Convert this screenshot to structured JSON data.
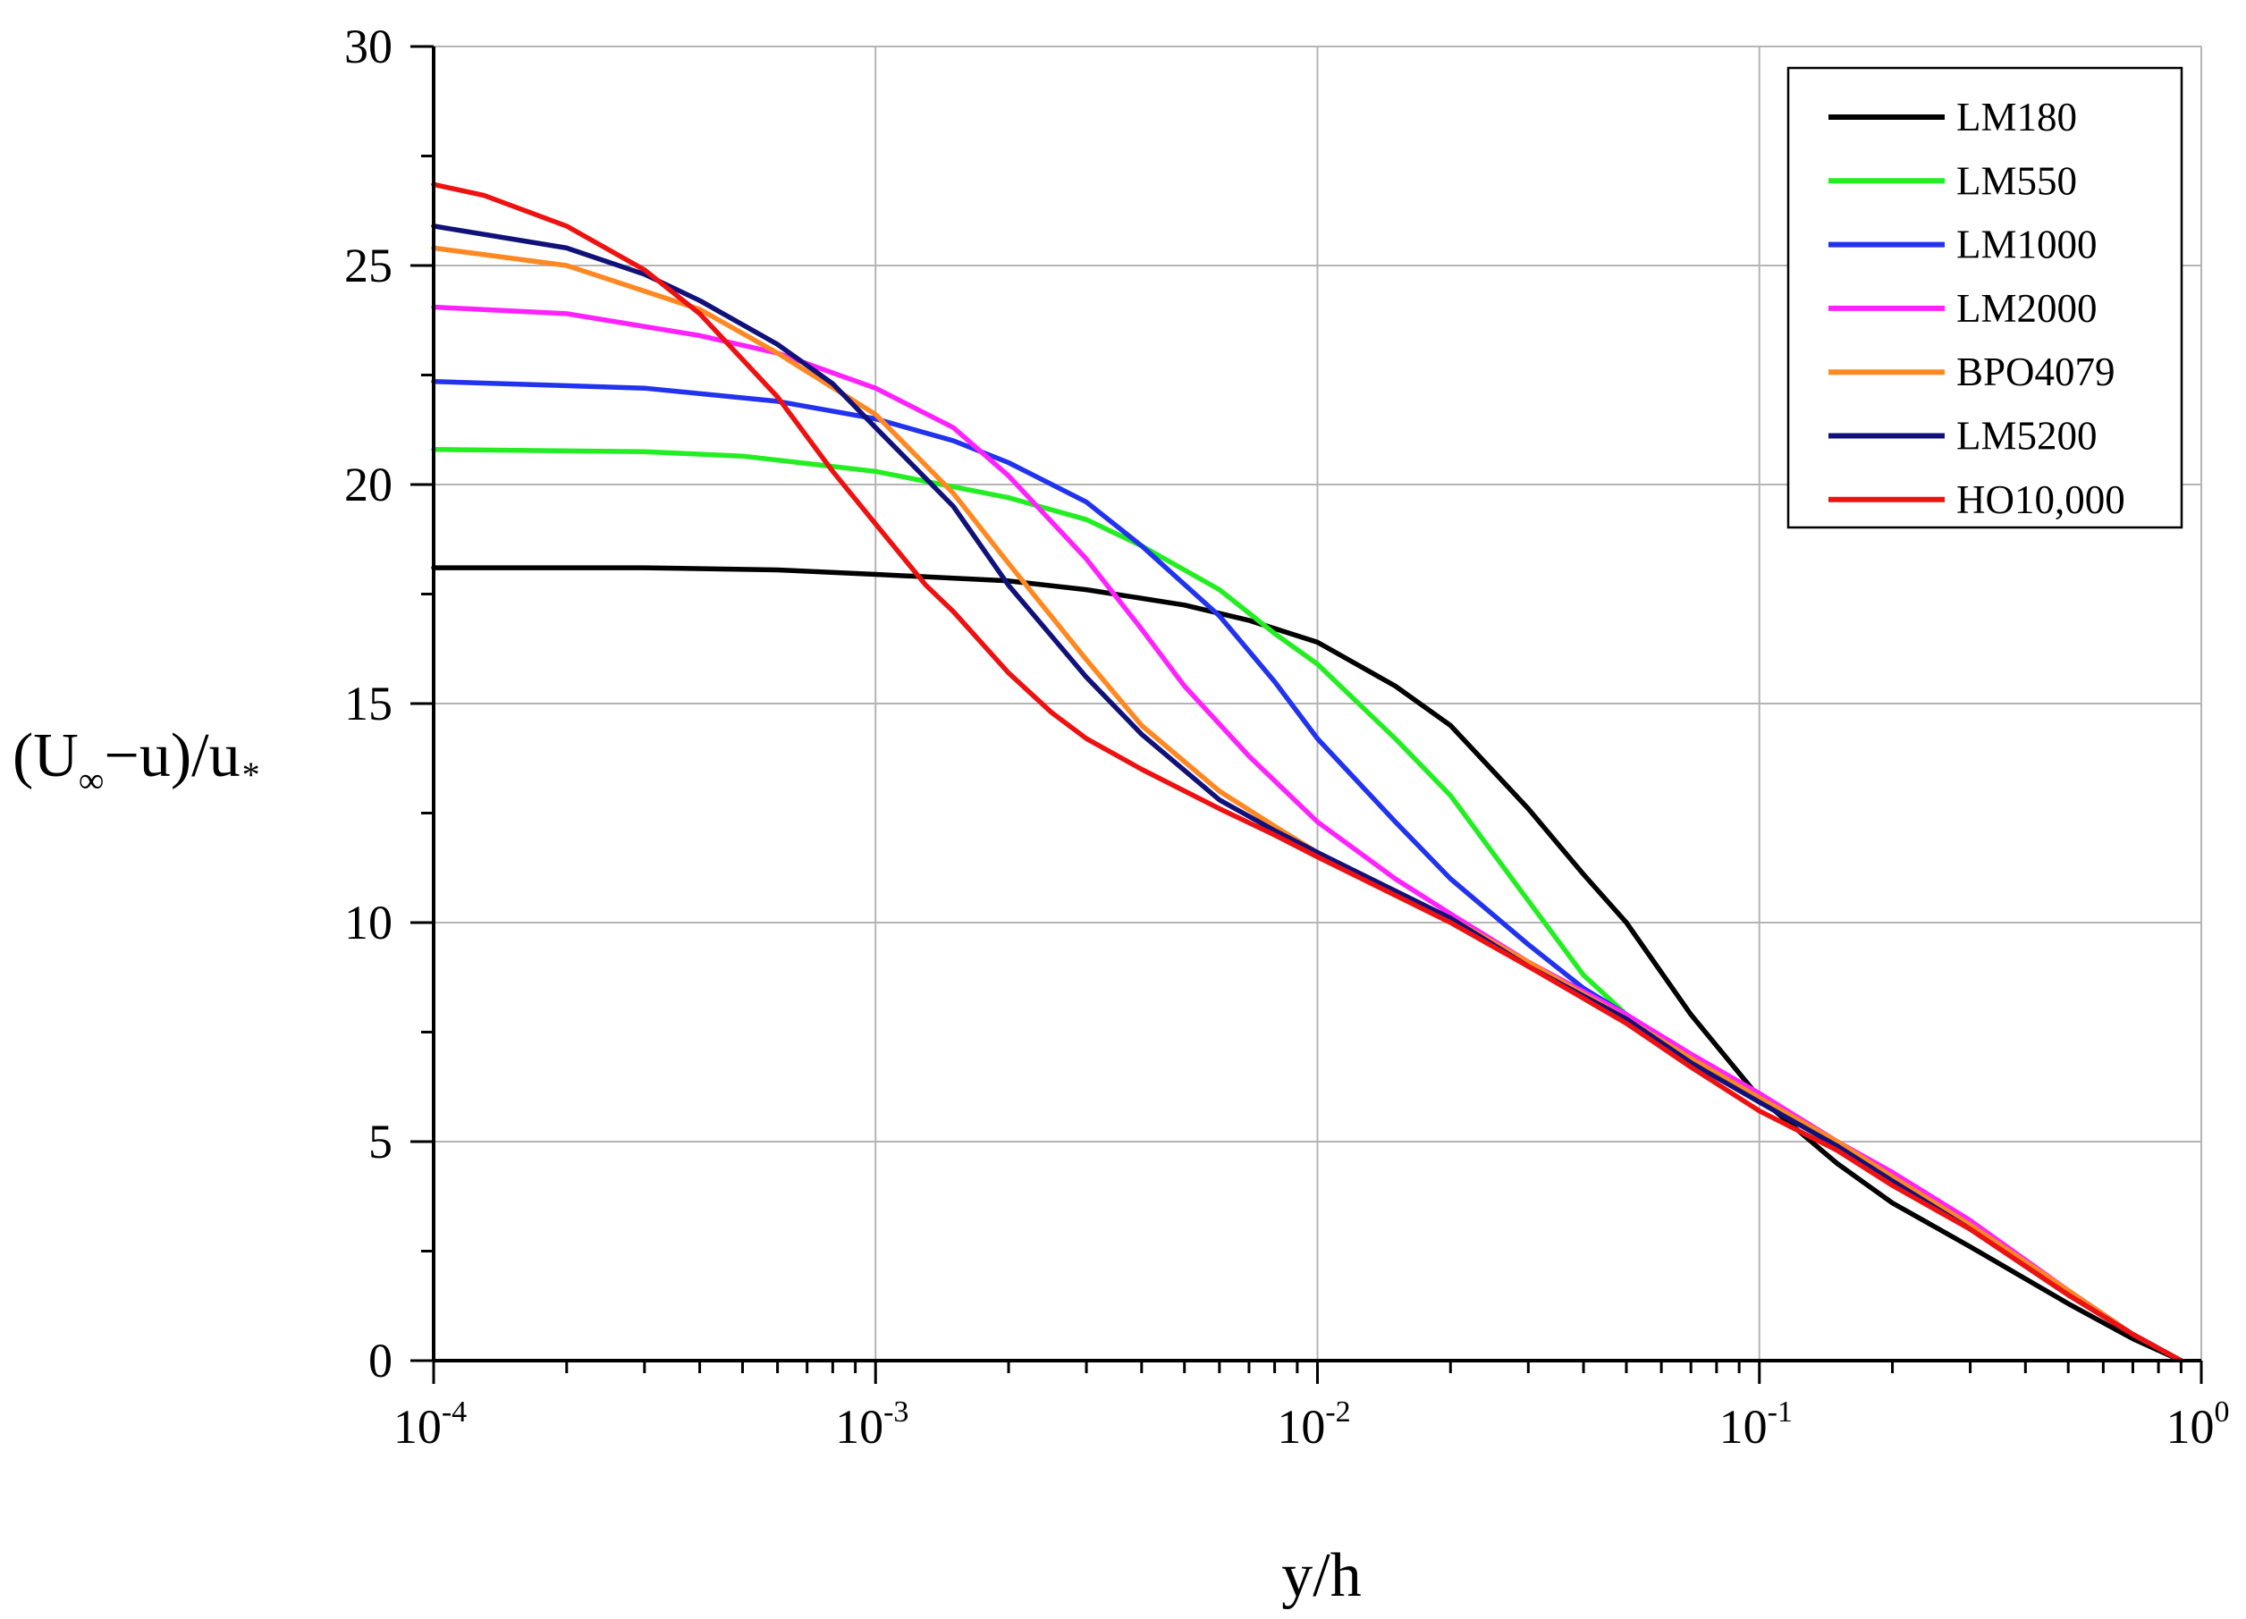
{
  "chart_data": {
    "type": "line",
    "title": "",
    "xlabel": "y/h",
    "ylabel": {
      "main": "(U",
      "sub": "∞",
      "middle": "−u)/u",
      "sub2": "*"
    },
    "xscale": "log",
    "xlim": [
      0.0001,
      1
    ],
    "ylim": [
      0,
      30
    ],
    "x_ticks": [
      {
        "value": 0.0001,
        "base": "10",
        "exp": "-4"
      },
      {
        "value": 0.001,
        "base": "10",
        "exp": "-3"
      },
      {
        "value": 0.01,
        "base": "10",
        "exp": "-2"
      },
      {
        "value": 0.1,
        "base": "10",
        "exp": "-1"
      },
      {
        "value": 1,
        "base": "10",
        "exp": "0"
      }
    ],
    "y_ticks": [
      {
        "value": 0,
        "label": "0"
      },
      {
        "value": 5,
        "label": "5"
      },
      {
        "value": 10,
        "label": "10"
      },
      {
        "value": 15,
        "label": "15"
      },
      {
        "value": 20,
        "label": "20"
      },
      {
        "value": 25,
        "label": "25"
      },
      {
        "value": 30,
        "label": "30"
      }
    ],
    "grid": true,
    "legend": "top-right",
    "series": [
      {
        "name": "LM180",
        "color": "#000000",
        "points": [
          [
            0.0001,
            18.1
          ],
          [
            0.0003,
            18.1
          ],
          [
            0.0006,
            18.05
          ],
          [
            0.001,
            17.95
          ],
          [
            0.002,
            17.8
          ],
          [
            0.003,
            17.6
          ],
          [
            0.005,
            17.25
          ],
          [
            0.007,
            16.9
          ],
          [
            0.01,
            16.4
          ],
          [
            0.015,
            15.4
          ],
          [
            0.02,
            14.5
          ],
          [
            0.03,
            12.6
          ],
          [
            0.04,
            11.1
          ],
          [
            0.05,
            10.0
          ],
          [
            0.07,
            7.9
          ],
          [
            0.1,
            6.0
          ],
          [
            0.15,
            4.5
          ],
          [
            0.2,
            3.6
          ],
          [
            0.3,
            2.6
          ],
          [
            0.5,
            1.3
          ],
          [
            0.7,
            0.5
          ],
          [
            0.9,
            0.0
          ]
        ]
      },
      {
        "name": "LM550",
        "color": "#22ee22",
        "points": [
          [
            0.0001,
            20.8
          ],
          [
            0.0003,
            20.75
          ],
          [
            0.0005,
            20.65
          ],
          [
            0.001,
            20.3
          ],
          [
            0.002,
            19.7
          ],
          [
            0.003,
            19.2
          ],
          [
            0.004,
            18.6
          ],
          [
            0.006,
            17.6
          ],
          [
            0.008,
            16.6
          ],
          [
            0.01,
            15.9
          ],
          [
            0.015,
            14.2
          ],
          [
            0.02,
            12.9
          ],
          [
            0.03,
            10.5
          ],
          [
            0.04,
            8.8
          ],
          [
            0.05,
            7.9
          ],
          [
            0.07,
            6.9
          ],
          [
            0.1,
            6.0
          ],
          [
            0.15,
            5.0
          ],
          [
            0.2,
            4.2
          ],
          [
            0.3,
            3.1
          ],
          [
            0.5,
            1.6
          ],
          [
            0.7,
            0.6
          ],
          [
            0.9,
            0.0
          ]
        ]
      },
      {
        "name": "LM1000",
        "color": "#2233ee",
        "points": [
          [
            0.0001,
            22.35
          ],
          [
            0.0003,
            22.2
          ],
          [
            0.0006,
            21.9
          ],
          [
            0.001,
            21.5
          ],
          [
            0.0015,
            21.0
          ],
          [
            0.002,
            20.5
          ],
          [
            0.003,
            19.6
          ],
          [
            0.004,
            18.6
          ],
          [
            0.006,
            17.0
          ],
          [
            0.008,
            15.5
          ],
          [
            0.01,
            14.2
          ],
          [
            0.015,
            12.3
          ],
          [
            0.02,
            11.0
          ],
          [
            0.03,
            9.5
          ],
          [
            0.04,
            8.5
          ],
          [
            0.05,
            7.9
          ],
          [
            0.07,
            6.9
          ],
          [
            0.1,
            6.0
          ],
          [
            0.15,
            5.0
          ],
          [
            0.2,
            4.2
          ],
          [
            0.3,
            3.1
          ],
          [
            0.5,
            1.6
          ],
          [
            0.7,
            0.6
          ],
          [
            0.9,
            0.0
          ]
        ]
      },
      {
        "name": "LM2000",
        "color": "#ff22ff",
        "points": [
          [
            0.0001,
            24.05
          ],
          [
            0.0002,
            23.9
          ],
          [
            0.0004,
            23.4
          ],
          [
            0.0006,
            23.0
          ],
          [
            0.001,
            22.2
          ],
          [
            0.0015,
            21.3
          ],
          [
            0.002,
            20.2
          ],
          [
            0.003,
            18.3
          ],
          [
            0.004,
            16.7
          ],
          [
            0.005,
            15.4
          ],
          [
            0.007,
            13.8
          ],
          [
            0.01,
            12.3
          ],
          [
            0.015,
            11.0
          ],
          [
            0.02,
            10.2
          ],
          [
            0.03,
            9.1
          ],
          [
            0.05,
            7.9
          ],
          [
            0.07,
            7.0
          ],
          [
            0.1,
            6.1
          ],
          [
            0.15,
            5.0
          ],
          [
            0.2,
            4.3
          ],
          [
            0.3,
            3.2
          ],
          [
            0.5,
            1.6
          ],
          [
            0.7,
            0.6
          ],
          [
            0.9,
            0.0
          ]
        ]
      },
      {
        "name": "BPO4079",
        "color": "#ff8822",
        "points": [
          [
            0.0001,
            25.4
          ],
          [
            0.0002,
            25.0
          ],
          [
            0.0004,
            24.0
          ],
          [
            0.0006,
            23.0
          ],
          [
            0.001,
            21.6
          ],
          [
            0.0015,
            19.8
          ],
          [
            0.002,
            18.2
          ],
          [
            0.003,
            16.0
          ],
          [
            0.004,
            14.5
          ],
          [
            0.006,
            13.0
          ],
          [
            0.008,
            12.2
          ],
          [
            0.01,
            11.6
          ],
          [
            0.02,
            10.1
          ],
          [
            0.03,
            9.1
          ],
          [
            0.05,
            7.8
          ],
          [
            0.07,
            6.9
          ],
          [
            0.1,
            6.0
          ],
          [
            0.15,
            5.0
          ],
          [
            0.2,
            4.2
          ],
          [
            0.3,
            3.1
          ],
          [
            0.5,
            1.6
          ],
          [
            0.7,
            0.6
          ],
          [
            0.9,
            0.0
          ]
        ]
      },
      {
        "name": "LM5200",
        "color": "#11117a",
        "points": [
          [
            0.0001,
            25.9
          ],
          [
            0.0002,
            25.4
          ],
          [
            0.0003,
            24.8
          ],
          [
            0.0004,
            24.2
          ],
          [
            0.0006,
            23.2
          ],
          [
            0.0008,
            22.3
          ],
          [
            0.001,
            21.3
          ],
          [
            0.0015,
            19.5
          ],
          [
            0.002,
            17.7
          ],
          [
            0.003,
            15.6
          ],
          [
            0.004,
            14.3
          ],
          [
            0.006,
            12.8
          ],
          [
            0.008,
            12.1
          ],
          [
            0.01,
            11.6
          ],
          [
            0.02,
            10.1
          ],
          [
            0.03,
            9.0
          ],
          [
            0.05,
            7.8
          ],
          [
            0.07,
            6.8
          ],
          [
            0.1,
            5.9
          ],
          [
            0.15,
            4.9
          ],
          [
            0.2,
            4.1
          ],
          [
            0.3,
            3.0
          ],
          [
            0.5,
            1.5
          ],
          [
            0.7,
            0.6
          ],
          [
            0.9,
            0.0
          ]
        ]
      },
      {
        "name": "HO10,000",
        "color": "#ee1111",
        "points": [
          [
            0.0001,
            26.85
          ],
          [
            0.00013,
            26.6
          ],
          [
            0.0002,
            25.9
          ],
          [
            0.0003,
            24.9
          ],
          [
            0.0004,
            23.9
          ],
          [
            0.0006,
            22.0
          ],
          [
            0.0008,
            20.3
          ],
          [
            0.001,
            19.1
          ],
          [
            0.0013,
            17.7
          ],
          [
            0.0015,
            17.1
          ],
          [
            0.002,
            15.7
          ],
          [
            0.0025,
            14.8
          ],
          [
            0.003,
            14.2
          ],
          [
            0.004,
            13.5
          ],
          [
            0.006,
            12.6
          ],
          [
            0.008,
            12.0
          ],
          [
            0.01,
            11.5
          ],
          [
            0.02,
            10.0
          ],
          [
            0.03,
            9.0
          ],
          [
            0.05,
            7.7
          ],
          [
            0.07,
            6.7
          ],
          [
            0.1,
            5.7
          ],
          [
            0.15,
            4.8
          ],
          [
            0.2,
            4.0
          ],
          [
            0.3,
            3.0
          ],
          [
            0.5,
            1.5
          ],
          [
            0.7,
            0.6
          ],
          [
            0.9,
            0.0
          ]
        ]
      }
    ]
  }
}
